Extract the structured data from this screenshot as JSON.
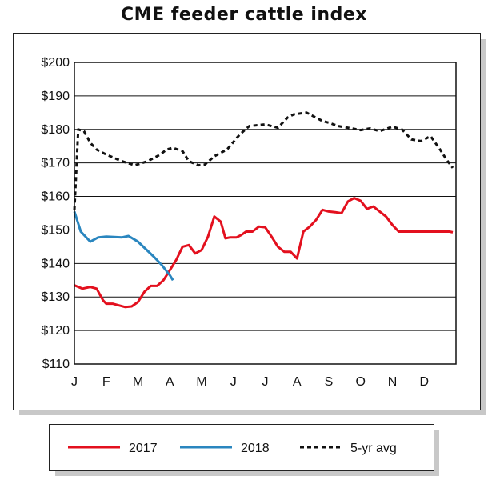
{
  "colors": {
    "s2017": "#e3101e",
    "s2018": "#2a86bf",
    "avg": "#111111"
  },
  "chart_data": {
    "type": "line",
    "title": "CME feeder cattle index",
    "xlabel": "",
    "ylabel": "",
    "xlim": [
      0,
      12
    ],
    "ylim": [
      110,
      200
    ],
    "y_ticks": [
      110,
      120,
      130,
      140,
      150,
      160,
      170,
      180,
      190,
      200
    ],
    "y_tick_labels": [
      "$110",
      "$120",
      "$130",
      "$140",
      "$150",
      "$160",
      "$170",
      "$180",
      "$190",
      "$200"
    ],
    "x_tick_labels": [
      "J",
      "F",
      "M",
      "A",
      "M",
      "J",
      "J",
      "A",
      "S",
      "O",
      "N",
      "D"
    ],
    "grid": "horizontal",
    "legend_position": "bottom",
    "series": [
      {
        "name": "2017",
        "x": [
          0,
          0.25,
          0.5,
          0.7,
          0.9,
          1.0,
          1.2,
          1.4,
          1.6,
          1.8,
          2.0,
          2.2,
          2.4,
          2.6,
          2.8,
          3.0,
          3.2,
          3.4,
          3.6,
          3.8,
          4.0,
          4.2,
          4.4,
          4.6,
          4.75,
          4.9,
          5.1,
          5.25,
          5.4,
          5.6,
          5.8,
          6.0,
          6.2,
          6.4,
          6.6,
          6.8,
          7.0,
          7.2,
          7.4,
          7.6,
          7.8,
          8.0,
          8.2,
          8.4,
          8.6,
          8.8,
          9.0,
          9.2,
          9.4,
          9.6,
          9.8,
          10.0,
          10.2,
          10.4,
          10.6,
          10.8,
          11.0,
          11.2,
          11.4,
          11.6,
          11.8,
          11.9
        ],
        "y": [
          133.5,
          132.5,
          133,
          132.5,
          129,
          128,
          128,
          127.5,
          127,
          127.2,
          128.5,
          131.5,
          133.3,
          133.3,
          135,
          138,
          141,
          145,
          145.5,
          143,
          144,
          148,
          154,
          152.5,
          147.5,
          147.8,
          147.8,
          148.5,
          149.5,
          149.5,
          151,
          150.8,
          148,
          145,
          143.5,
          143.5,
          141.5,
          149.5,
          151,
          153,
          156,
          155.5,
          155.3,
          155,
          158.5,
          159.5,
          158.7,
          156.3,
          157,
          155.5,
          154,
          151.5,
          149.5,
          149.5,
          149.5,
          149.5,
          149.5,
          149.5,
          149.5,
          149.5,
          149.5,
          149.3
        ]
      },
      {
        "name": "2018",
        "x": [
          0,
          0.2,
          0.5,
          0.75,
          1.0,
          1.5,
          1.7,
          2.0,
          2.5,
          2.75,
          3.0,
          3.1
        ],
        "y": [
          155.5,
          149.5,
          146.5,
          147.8,
          148,
          147.8,
          148.2,
          146.5,
          142,
          139.5,
          136.5,
          135
        ]
      },
      {
        "name": "5-yr avg",
        "x": [
          0,
          0.12,
          0.3,
          0.5,
          0.7,
          1.0,
          1.5,
          1.9,
          2.3,
          2.7,
          2.9,
          3.1,
          3.4,
          3.6,
          3.9,
          4.1,
          4.4,
          4.8,
          5.2,
          5.5,
          6.0,
          6.4,
          6.7,
          6.9,
          7.3,
          7.6,
          7.8,
          8.0,
          8.3,
          8.6,
          9.0,
          9.3,
          9.6,
          10.0,
          10.3,
          10.6,
          10.9,
          11.2,
          11.5,
          11.7,
          11.9
        ],
        "y": [
          156,
          180,
          179.5,
          176,
          174,
          172.5,
          170.5,
          169.3,
          170.5,
          172.5,
          174,
          174.5,
          173.5,
          170.5,
          169.3,
          169.5,
          172,
          174,
          178.5,
          181,
          181.5,
          180.5,
          183.5,
          184.5,
          185,
          183.5,
          182.5,
          182,
          181,
          180.5,
          179.8,
          180.3,
          179.5,
          180.8,
          180,
          177,
          176.5,
          178,
          174,
          171,
          168.5
        ]
      }
    ]
  }
}
